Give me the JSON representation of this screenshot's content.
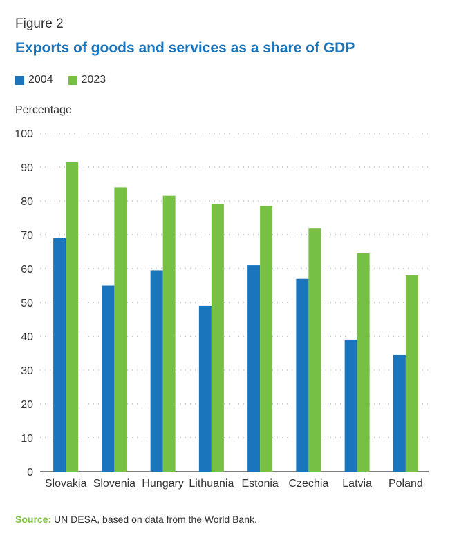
{
  "figure_label": "Figure 2",
  "chart_data": {
    "type": "bar",
    "title": "Exports of goods and services as a share of GDP",
    "ylabel": "Percentage",
    "xlabel": "",
    "ylim": [
      0,
      100
    ],
    "yticks": [
      0,
      10,
      20,
      30,
      40,
      50,
      60,
      70,
      80,
      90,
      100
    ],
    "grid": "horizontal dotted",
    "legend_position": "top-left",
    "categories": [
      "Slovakia",
      "Slovenia",
      "Hungary",
      "Lithuania",
      "Estonia",
      "Czechia",
      "Latvia",
      "Poland"
    ],
    "series": [
      {
        "name": "2004",
        "color": "#1a75bc",
        "values": [
          69,
          55,
          59.5,
          49,
          61,
          57,
          39,
          34.5
        ]
      },
      {
        "name": "2023",
        "color": "#76c043",
        "values": [
          91.5,
          84,
          81.5,
          79,
          78.5,
          72,
          64.5,
          58
        ]
      }
    ]
  },
  "source": {
    "label": "Source:",
    "text": " UN DESA, based on data from the World Bank."
  }
}
